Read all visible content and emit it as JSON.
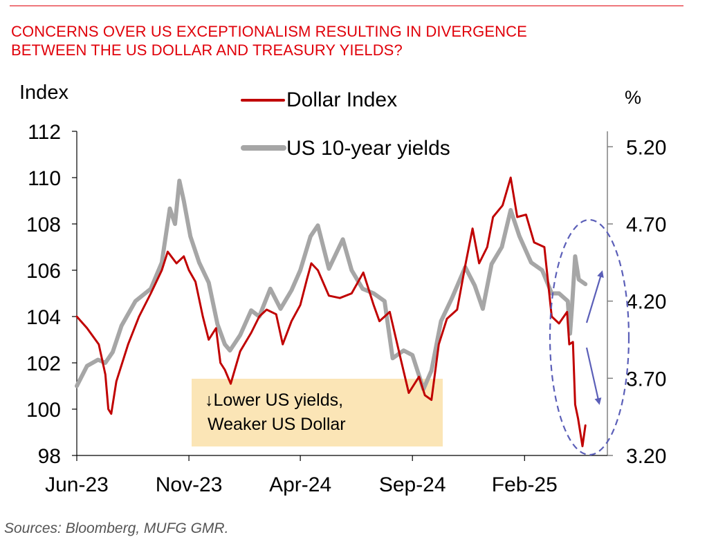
{
  "colors": {
    "title": "#e0000a",
    "dollar": "#c00000",
    "yields": "#a6a6a6",
    "annotation_box": "#fbe5b6",
    "ellipse": "#5b5fb8"
  },
  "title_lines": [
    "CONCERNS OVER US EXCEPTIONALISM RESULTING IN DIVERGENCE",
    "BETWEEN THE US DOLLAR AND TREASURY YIELDS?"
  ],
  "source": "Sources:  Bloomberg, MUFG GMR.",
  "annotation_lines": [
    "↓Lower US yields,",
    "Weaker US Dollar"
  ],
  "chart_data": {
    "type": "line",
    "title": "CONCERNS OVER US EXCEPTIONALISM RESULTING IN DIVERGENCE BETWEEN THE US DOLLAR AND TREASURY YIELDS?",
    "left_axis": {
      "label": "Index",
      "min": 98,
      "max": 112,
      "ticks": [
        "98",
        "100",
        "102",
        "104",
        "106",
        "108",
        "110",
        "112"
      ]
    },
    "right_axis": {
      "label": "%",
      "min": 3.2,
      "max": 5.3,
      "ticks": [
        "3.20",
        "3.70",
        "4.20",
        "4.70",
        "5.20"
      ]
    },
    "x_ticks": [
      "Jun-23",
      "Nov-23",
      "Apr-24",
      "Sep-24",
      "Feb-25"
    ],
    "legend_position": "top-center",
    "grid": false,
    "series": [
      {
        "name": "Dollar Index",
        "axis": "left",
        "dates": [
          "2023-06-01",
          "2023-06-15",
          "2023-07-01",
          "2023-07-10",
          "2023-07-14",
          "2023-07-18",
          "2023-07-25",
          "2023-08-10",
          "2023-08-25",
          "2023-09-10",
          "2023-09-25",
          "2023-10-03",
          "2023-10-15",
          "2023-10-25",
          "2023-11-01",
          "2023-11-10",
          "2023-11-20",
          "2023-11-28",
          "2023-12-08",
          "2023-12-14",
          "2023-12-20",
          "2023-12-28",
          "2024-01-10",
          "2024-01-25",
          "2024-02-05",
          "2024-02-15",
          "2024-02-28",
          "2024-03-08",
          "2024-03-20",
          "2024-04-01",
          "2024-04-10",
          "2024-04-16",
          "2024-04-25",
          "2024-05-10",
          "2024-05-25",
          "2024-06-10",
          "2024-06-26",
          "2024-07-10",
          "2024-07-18",
          "2024-08-01",
          "2024-08-15",
          "2024-08-27",
          "2024-09-10",
          "2024-09-18",
          "2024-09-27",
          "2024-10-07",
          "2024-10-18",
          "2024-11-01",
          "2024-11-12",
          "2024-11-22",
          "2024-12-01",
          "2024-12-12",
          "2024-12-20",
          "2025-01-02",
          "2025-01-13",
          "2025-01-22",
          "2025-02-03",
          "2025-02-14",
          "2025-02-28",
          "2025-03-10",
          "2025-03-20",
          "2025-03-31",
          "2025-04-03",
          "2025-04-08",
          "2025-04-11",
          "2025-04-15",
          "2025-04-21",
          "2025-04-25"
        ],
        "values": [
          104.0,
          103.5,
          102.8,
          101.5,
          100.0,
          99.8,
          101.2,
          102.8,
          104.0,
          105.0,
          106.0,
          106.8,
          106.3,
          106.6,
          106.0,
          105.5,
          104.0,
          103.0,
          103.5,
          102.0,
          101.7,
          101.1,
          102.5,
          103.3,
          104.0,
          104.3,
          104.1,
          102.8,
          103.8,
          104.5,
          105.6,
          106.3,
          106.0,
          104.9,
          104.8,
          105.0,
          105.9,
          104.5,
          103.8,
          104.2,
          102.3,
          100.7,
          101.4,
          100.6,
          100.4,
          102.8,
          103.9,
          104.3,
          106.2,
          107.8,
          106.3,
          107.0,
          108.3,
          108.8,
          110.0,
          108.3,
          108.4,
          107.2,
          107.0,
          104.0,
          103.7,
          104.2,
          102.8,
          102.9,
          100.2,
          99.6,
          98.4,
          99.3
        ]
      },
      {
        "name": "US 10-year yields",
        "axis": "right",
        "dates": [
          "2023-06-01",
          "2023-06-15",
          "2023-06-30",
          "2023-07-10",
          "2023-07-20",
          "2023-08-01",
          "2023-08-20",
          "2023-09-10",
          "2023-09-25",
          "2023-10-06",
          "2023-10-13",
          "2023-10-19",
          "2023-10-25",
          "2023-11-03",
          "2023-11-15",
          "2023-11-28",
          "2023-12-10",
          "2023-12-20",
          "2023-12-27",
          "2024-01-10",
          "2024-01-25",
          "2024-02-05",
          "2024-02-20",
          "2024-03-05",
          "2024-03-20",
          "2024-04-01",
          "2024-04-15",
          "2024-04-25",
          "2024-05-10",
          "2024-05-29",
          "2024-06-10",
          "2024-06-25",
          "2024-07-10",
          "2024-07-25",
          "2024-08-05",
          "2024-08-20",
          "2024-09-01",
          "2024-09-16",
          "2024-09-27",
          "2024-10-10",
          "2024-10-25",
          "2024-11-12",
          "2024-11-25",
          "2024-12-06",
          "2024-12-18",
          "2025-01-01",
          "2025-01-13",
          "2025-01-25",
          "2025-02-10",
          "2025-02-25",
          "2025-03-10",
          "2025-03-20",
          "2025-04-01",
          "2025-04-04",
          "2025-04-07",
          "2025-04-11",
          "2025-04-16",
          "2025-04-25"
        ],
        "values": [
          3.65,
          3.78,
          3.82,
          3.8,
          3.87,
          4.04,
          4.2,
          4.28,
          4.45,
          4.8,
          4.7,
          4.98,
          4.85,
          4.62,
          4.45,
          4.32,
          4.05,
          3.92,
          3.88,
          3.98,
          4.14,
          4.1,
          4.28,
          4.15,
          4.27,
          4.4,
          4.62,
          4.69,
          4.41,
          4.6,
          4.4,
          4.28,
          4.25,
          4.2,
          3.83,
          3.88,
          3.85,
          3.63,
          3.75,
          4.07,
          4.22,
          4.42,
          4.3,
          4.15,
          4.44,
          4.55,
          4.79,
          4.62,
          4.45,
          4.4,
          4.25,
          4.25,
          4.2,
          3.99,
          4.18,
          4.49,
          4.34,
          4.31
        ]
      }
    ]
  }
}
